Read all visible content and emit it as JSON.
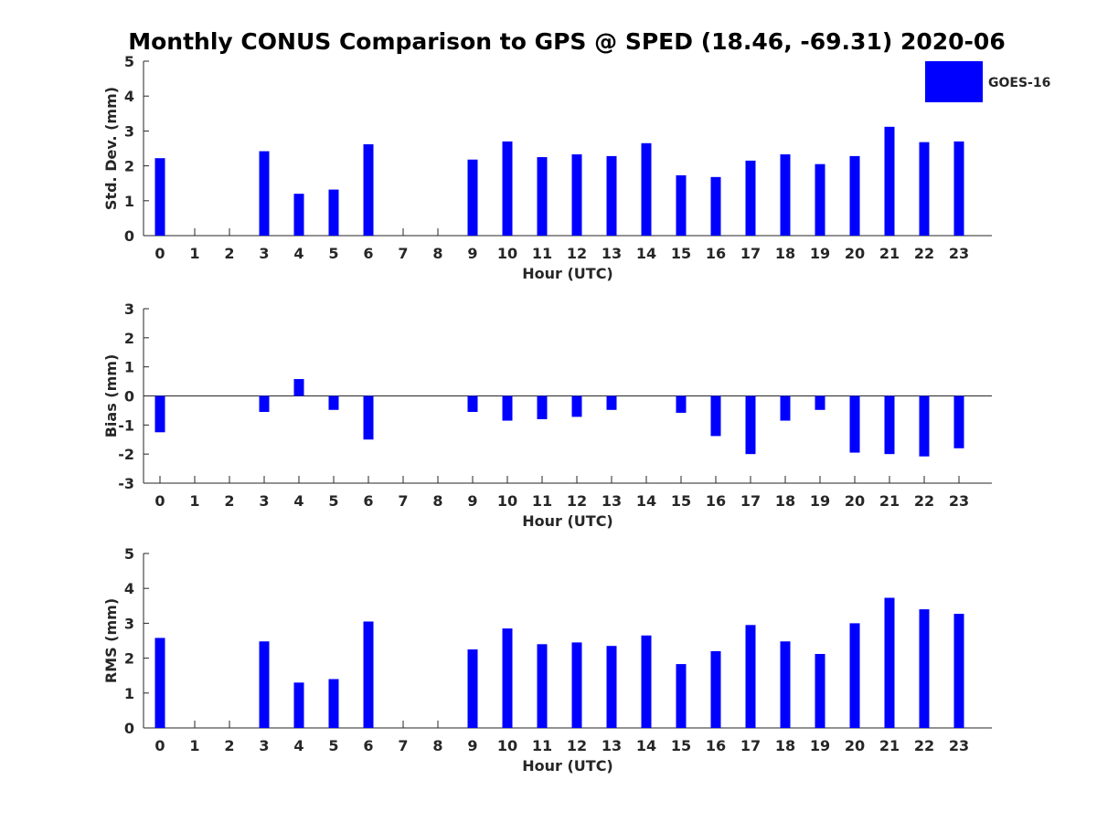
{
  "title": "Monthly CONUS Comparison to GPS @ SPED (18.46, -69.31) 2020-06",
  "colors": {
    "bar": "#0000FF",
    "axis": "#262626",
    "background": "#FFFFFF"
  },
  "chart_data": [
    {
      "type": "bar",
      "title": "",
      "xlabel": "Hour (UTC)",
      "ylabel": "Std. Dev. (mm)",
      "categories": [
        "0",
        "1",
        "2",
        "3",
        "4",
        "5",
        "6",
        "7",
        "8",
        "9",
        "10",
        "11",
        "12",
        "13",
        "14",
        "15",
        "16",
        "17",
        "18",
        "19",
        "20",
        "21",
        "22",
        "23"
      ],
      "ylim": [
        0,
        5
      ],
      "yticks": [
        "0",
        "1",
        "2",
        "3",
        "4",
        "5"
      ],
      "series": [
        {
          "name": "GOES-16",
          "values": [
            2.22,
            null,
            null,
            2.42,
            1.2,
            1.32,
            2.62,
            null,
            null,
            2.18,
            2.7,
            2.25,
            2.33,
            2.28,
            2.65,
            1.73,
            1.68,
            2.15,
            2.33,
            2.05,
            2.28,
            3.12,
            2.68,
            2.7
          ]
        }
      ],
      "legend": "top-right",
      "grid": false
    },
    {
      "type": "bar",
      "title": "",
      "xlabel": "Hour (UTC)",
      "ylabel": "Bias (mm)",
      "categories": [
        "0",
        "1",
        "2",
        "3",
        "4",
        "5",
        "6",
        "7",
        "8",
        "9",
        "10",
        "11",
        "12",
        "13",
        "14",
        "15",
        "16",
        "17",
        "18",
        "19",
        "20",
        "21",
        "22",
        "23"
      ],
      "ylim": [
        -3,
        3
      ],
      "yticks": [
        "-3",
        "-2",
        "-1",
        "0",
        "1",
        "2",
        "3"
      ],
      "zero_line": true,
      "series": [
        {
          "name": "GOES-16",
          "values": [
            -1.25,
            null,
            null,
            -0.55,
            0.58,
            -0.48,
            -1.5,
            null,
            null,
            -0.55,
            -0.85,
            -0.8,
            -0.72,
            -0.48,
            null,
            -0.58,
            -1.38,
            -2.0,
            -0.85,
            -0.48,
            -1.95,
            -2.0,
            -2.08,
            -1.8
          ]
        }
      ],
      "grid": false
    },
    {
      "type": "bar",
      "title": "",
      "xlabel": "Hour (UTC)",
      "ylabel": "RMS (mm)",
      "categories": [
        "0",
        "1",
        "2",
        "3",
        "4",
        "5",
        "6",
        "7",
        "8",
        "9",
        "10",
        "11",
        "12",
        "13",
        "14",
        "15",
        "16",
        "17",
        "18",
        "19",
        "20",
        "21",
        "22",
        "23"
      ],
      "ylim": [
        0,
        5
      ],
      "yticks": [
        "0",
        "1",
        "2",
        "3",
        "4",
        "5"
      ],
      "series": [
        {
          "name": "GOES-16",
          "values": [
            2.58,
            null,
            null,
            2.48,
            1.3,
            1.4,
            3.05,
            null,
            null,
            2.25,
            2.85,
            2.4,
            2.45,
            2.35,
            2.65,
            1.83,
            2.2,
            2.95,
            2.48,
            2.12,
            3.0,
            3.73,
            3.4,
            3.27
          ]
        }
      ],
      "grid": false
    }
  ]
}
